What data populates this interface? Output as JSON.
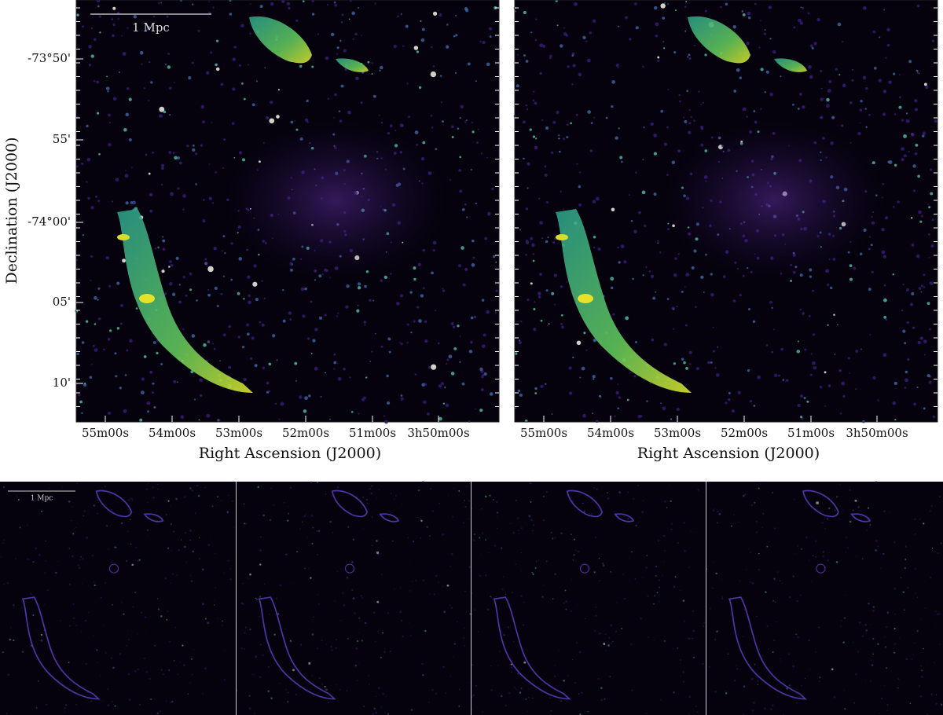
{
  "top_panels": [
    {
      "scale_bar": "1 Mpc",
      "y_label": "Declination (J2000)",
      "y_ticks": [
        "-73°50'",
        "55'",
        "-74°00'",
        "05'",
        "10'"
      ],
      "x_ticks": [
        "55m00s",
        "54m00s",
        "53m00s",
        "52m00s",
        "51m00s",
        "3h50m00s"
      ],
      "x_label": "Right Ascension (J2000)"
    },
    {
      "x_ticks": [
        "55m00s",
        "54m00s",
        "53m00s",
        "52m00s",
        "51m00s",
        "3h50m00s"
      ],
      "x_label": "Right Ascension (J2000)"
    }
  ],
  "bottom_panels": {
    "scale_bar": "1 Mpc"
  }
}
